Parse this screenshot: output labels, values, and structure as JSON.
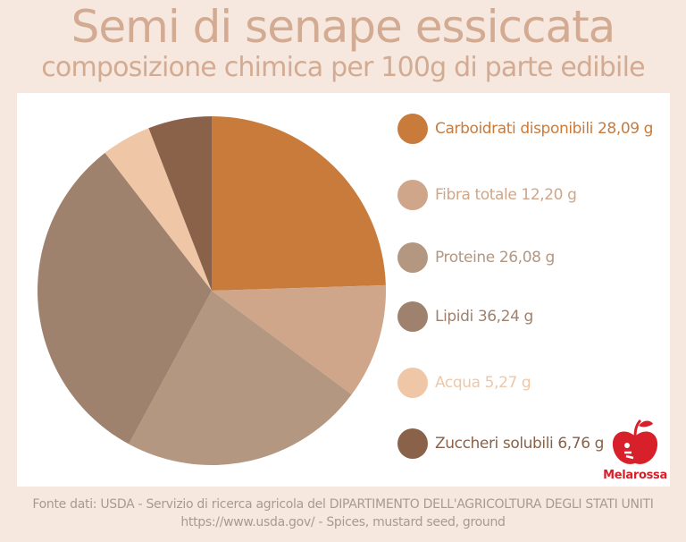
{
  "title": "Semi di senape essiccata",
  "subtitle": "composizione chimica per 100g di parte edibile",
  "chart_data": {
    "type": "pie",
    "title": "Semi di senape essiccata",
    "subtitle": "composizione chimica per 100g di parte edibile",
    "unit": "g",
    "legend_position": "right",
    "series": [
      {
        "name": "Carboidrati disponibili",
        "value": 28.09,
        "label": "Carboidrati disponibili 28,09 g",
        "color": "#c97b3c"
      },
      {
        "name": "Fibra totale",
        "value": 12.2,
        "label": "Fibra totale 12,20 g",
        "color": "#cfa68a"
      },
      {
        "name": "Proteine",
        "value": 26.08,
        "label": "Proteine 26,08 g",
        "color": "#b39781"
      },
      {
        "name": "Lipidi",
        "value": 36.24,
        "label": "Lipidi 36,24 g",
        "color": "#9f826e"
      },
      {
        "name": "Acqua",
        "value": 5.27,
        "label": "Acqua  5,27 g",
        "color": "#f0c7a6"
      },
      {
        "name": "Zuccheri solubili",
        "value": 6.76,
        "label": "Zuccheri solubili 6,76 g",
        "color": "#8a6249"
      }
    ]
  },
  "legend_text_colors": [
    "#c97b3c",
    "#cfa68a",
    "#b39781",
    "#9f826e",
    "#f0c7a6",
    "#8a6249"
  ],
  "logo": {
    "text": "Melarossa",
    "icon": "apple-icon",
    "color": "#d8202a"
  },
  "source": {
    "line1": "Fonte dati: USDA - Servizio di ricerca agricola del DIPARTIMENTO DELL'AGRICOLTURA DEGLI STATI UNITI",
    "line2": "https://www.usda.gov/ - Spices, mustard seed, ground"
  }
}
